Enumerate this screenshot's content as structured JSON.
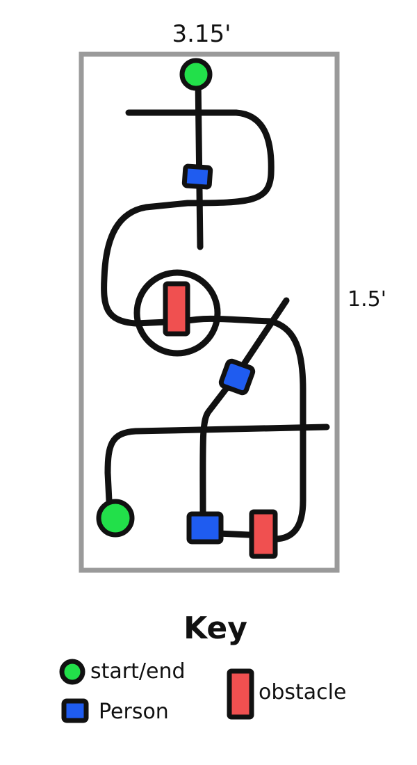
{
  "dimensions": {
    "width_label": "3.15'",
    "height_label": "1.5'"
  },
  "key": {
    "title": "Key",
    "start_end": "start/end",
    "person": "Person",
    "obstacle": "obstacle"
  },
  "colors": {
    "frame": "#9a9a9a",
    "line": "#111111",
    "start": "#22e04a",
    "person": "#1f5cf0",
    "obstacle": "#f05050"
  }
}
